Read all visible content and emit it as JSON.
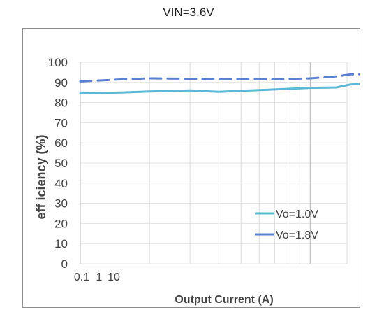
{
  "chart_data": {
    "type": "line",
    "title": "VIN=3.6V",
    "xlabel": "Output Current (A)",
    "ylabel": "eff iciency (%)",
    "x_tick_labels": [
      "0.1",
      "1",
      "10"
    ],
    "y_ticks": [
      0,
      10,
      20,
      30,
      40,
      50,
      60,
      70,
      80,
      90,
      100
    ],
    "y_tick_labels": [
      "0",
      "10",
      "20",
      "30",
      "40",
      "50",
      "60",
      "70",
      "80",
      "90",
      "100"
    ],
    "ylim": [
      0,
      100
    ],
    "x_scale": "log",
    "xlim_decades": [
      0,
      1.16
    ],
    "grid": true,
    "legend_position": "bottom-right",
    "series": [
      {
        "name": "Vo=1.0V",
        "color": "#5bb8d6",
        "style": "solid",
        "x": [
          0.1,
          0.15,
          0.2,
          0.3,
          0.4,
          0.55,
          0.7,
          1.0,
          1.3,
          1.5,
          2.0,
          3.0,
          4.0,
          5.0,
          7.0
        ],
        "values": [
          84.5,
          85.0,
          85.5,
          86.0,
          85.3,
          86.0,
          86.5,
          87.3,
          87.5,
          89.0,
          89.7,
          89.5,
          89.0,
          87.5,
          84.5
        ]
      },
      {
        "name": "Vo=1.8V",
        "color": "#5b7fd1",
        "style": "dashed",
        "x": [
          0.1,
          0.15,
          0.2,
          0.3,
          0.4,
          0.55,
          0.7,
          1.0,
          1.3,
          1.5,
          2.0,
          3.0,
          4.0,
          5.0
        ],
        "values": [
          90.5,
          91.5,
          92.0,
          91.8,
          91.5,
          91.6,
          91.5,
          92.0,
          93.0,
          94.0,
          94.0,
          93.5,
          92.5,
          91.5
        ]
      }
    ]
  }
}
